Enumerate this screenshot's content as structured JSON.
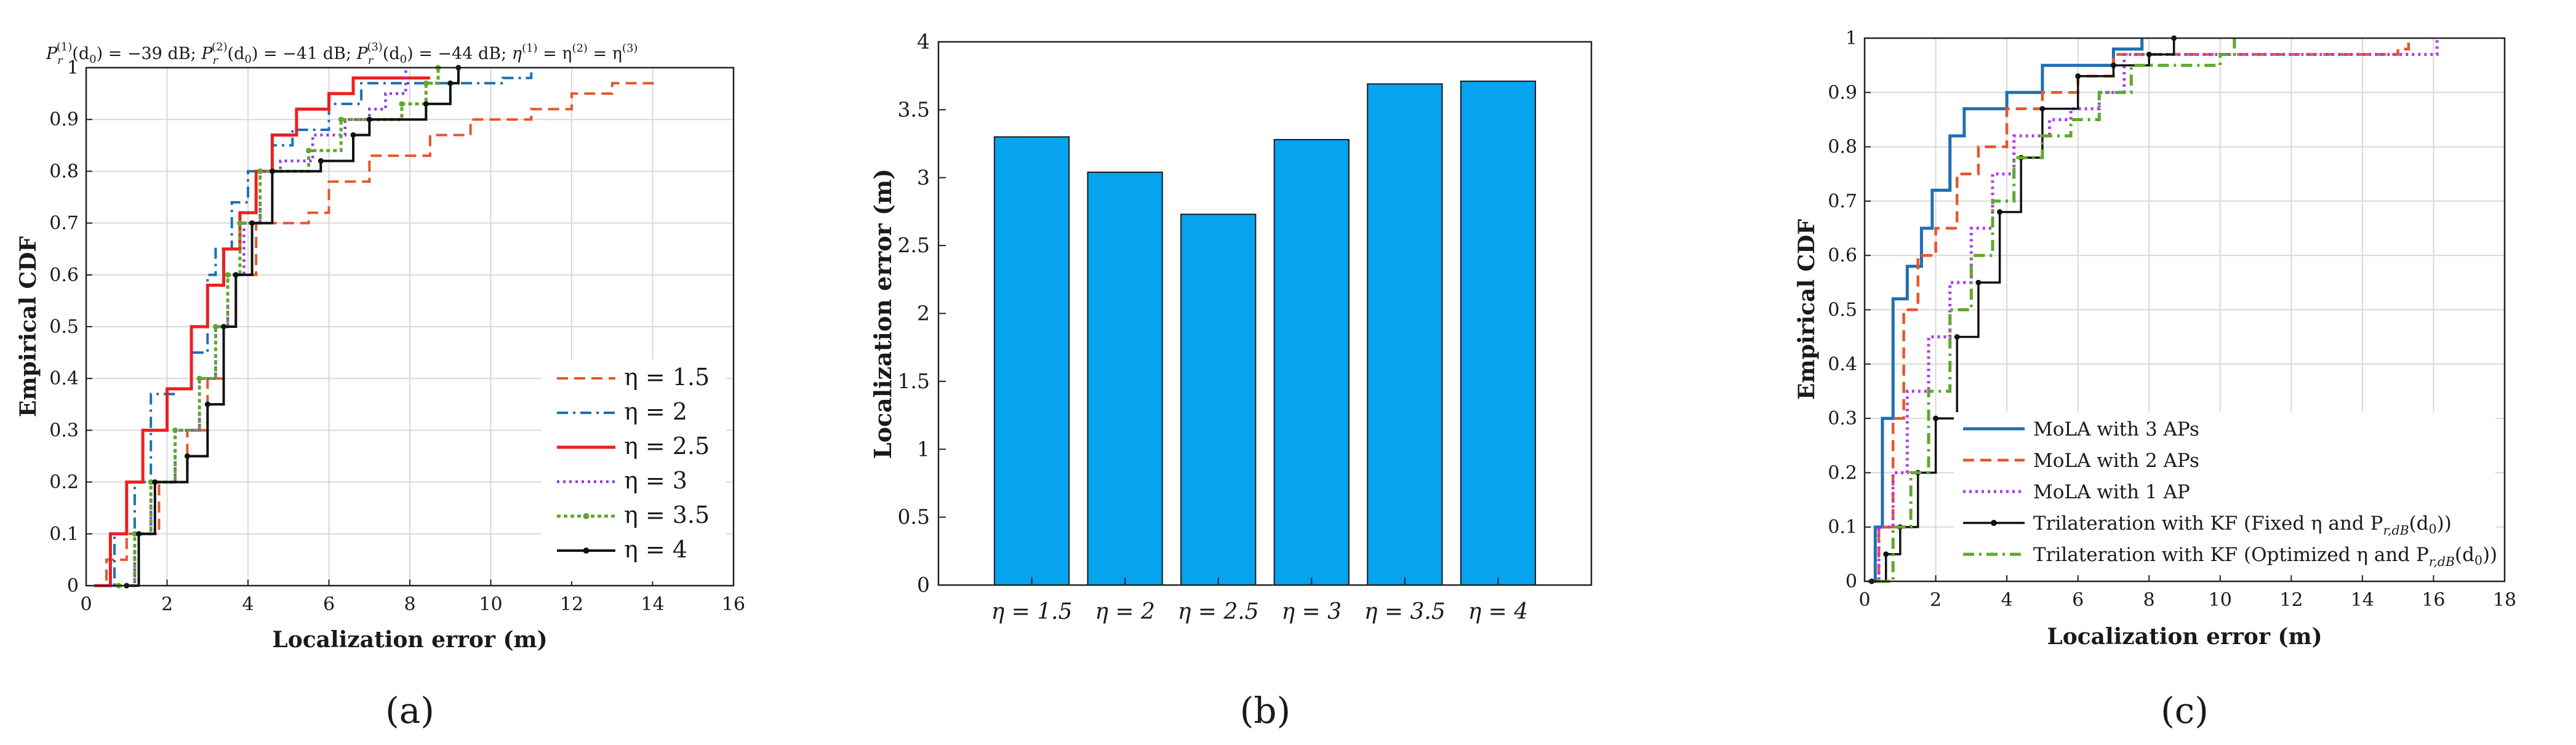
{
  "chart_data": [
    {
      "type": "line",
      "panel_label": "(a)",
      "title": "P_r^(1)(d_0) = −39 dB; P_r^(2)(d_0) = −41 dB; P_r^(3)(d_0) = −44 dB;  η^(1) = η^(2) = η^(3)",
      "title_parts": {
        "p1": "P",
        "p1_sub": "r",
        "p1_sup": "(1)",
        "p1_rest": "(d",
        "p1_d0": "0",
        "p1_val": ") = −39 dB; ",
        "p2": "P",
        "p2_sub": "r",
        "p2_sup": "(2)",
        "p2_rest": "(d",
        "p2_d0": "0",
        "p2_val": ") = −41 dB; ",
        "p3": "P",
        "p3_sub": "r",
        "p3_sup": "(3)",
        "p3_rest": "(d",
        "p3_d0": "0",
        "p3_val": ") = −44 dB;  ",
        "eta": "η",
        "eta_sup1": "(1)",
        "eq1": " = η",
        "eta_sup2": "(2)",
        "eq2": " = η",
        "eta_sup3": "(3)"
      },
      "xlabel": "Localization error (m)",
      "ylabel": "Empirical CDF",
      "xlim": [
        0,
        16
      ],
      "ylim": [
        0,
        1
      ],
      "xticks": [
        "0",
        "2",
        "4",
        "6",
        "8",
        "10",
        "12",
        "14",
        "16"
      ],
      "yticks": [
        "0",
        "0.1",
        "0.2",
        "0.3",
        "0.4",
        "0.5",
        "0.6",
        "0.7",
        "0.8",
        "0.9",
        "1"
      ],
      "grid": true,
      "legend_position": "lower-right",
      "series": [
        {
          "name": "η = 1.5",
          "color": "#e5572a",
          "dash": "18,10",
          "width": 4,
          "marker": false,
          "points": [
            [
              0.2,
              0
            ],
            [
              0.5,
              0.05
            ],
            [
              1.0,
              0.1
            ],
            [
              1.8,
              0.2
            ],
            [
              2.5,
              0.3
            ],
            [
              3.0,
              0.4
            ],
            [
              3.4,
              0.5
            ],
            [
              3.7,
              0.6
            ],
            [
              4.2,
              0.7
            ],
            [
              5.5,
              0.72
            ],
            [
              6.0,
              0.78
            ],
            [
              7.0,
              0.83
            ],
            [
              8.5,
              0.87
            ],
            [
              9.5,
              0.9
            ],
            [
              11.0,
              0.92
            ],
            [
              12.0,
              0.95
            ],
            [
              13.0,
              0.97
            ],
            [
              14.0,
              0.98
            ]
          ]
        },
        {
          "name": "η = 2",
          "color": "#1f6fb2",
          "dash": "18,8,4,8",
          "width": 4,
          "marker": false,
          "points": [
            [
              0.3,
              0
            ],
            [
              0.7,
              0.1
            ],
            [
              1.2,
              0.2
            ],
            [
              1.6,
              0.37
            ],
            [
              2.2,
              0.38
            ],
            [
              2.6,
              0.45
            ],
            [
              3.0,
              0.6
            ],
            [
              3.2,
              0.65
            ],
            [
              3.6,
              0.74
            ],
            [
              4.0,
              0.8
            ],
            [
              4.6,
              0.85
            ],
            [
              5.1,
              0.88
            ],
            [
              6.0,
              0.93
            ],
            [
              6.8,
              0.97
            ],
            [
              10.3,
              0.98
            ],
            [
              11.0,
              1.0
            ]
          ]
        },
        {
          "name": "η = 2.5",
          "color": "#ee1f1f",
          "dash": "",
          "width": 5,
          "marker": false,
          "points": [
            [
              0.2,
              0
            ],
            [
              0.6,
              0.1
            ],
            [
              1.0,
              0.2
            ],
            [
              1.4,
              0.3
            ],
            [
              2.0,
              0.38
            ],
            [
              2.6,
              0.5
            ],
            [
              3.0,
              0.58
            ],
            [
              3.4,
              0.65
            ],
            [
              3.8,
              0.72
            ],
            [
              4.2,
              0.8
            ],
            [
              4.6,
              0.87
            ],
            [
              5.2,
              0.92
            ],
            [
              6.0,
              0.95
            ],
            [
              6.6,
              0.98
            ],
            [
              8.5,
              0.98
            ]
          ]
        },
        {
          "name": "η = 3",
          "color": "#8b3fd6",
          "dash": "4,6",
          "width": 4.5,
          "marker": false,
          "points": [
            [
              0.5,
              0
            ],
            [
              1.2,
              0.1
            ],
            [
              1.6,
              0.2
            ],
            [
              2.2,
              0.3
            ],
            [
              2.8,
              0.4
            ],
            [
              3.2,
              0.5
            ],
            [
              3.5,
              0.6
            ],
            [
              3.9,
              0.7
            ],
            [
              4.3,
              0.8
            ],
            [
              4.8,
              0.82
            ],
            [
              5.6,
              0.87
            ],
            [
              6.4,
              0.9
            ],
            [
              7.0,
              0.92
            ],
            [
              7.4,
              0.95
            ],
            [
              7.9,
              1.0
            ]
          ]
        },
        {
          "name": "η = 3.5",
          "color": "#5fa82c",
          "dash": "6,5",
          "width": 5,
          "marker": true,
          "points": [
            [
              0.8,
              0
            ],
            [
              1.2,
              0.1
            ],
            [
              1.6,
              0.2
            ],
            [
              2.2,
              0.3
            ],
            [
              2.8,
              0.4
            ],
            [
              3.2,
              0.5
            ],
            [
              3.5,
              0.6
            ],
            [
              3.8,
              0.7
            ],
            [
              4.3,
              0.8
            ],
            [
              5.5,
              0.84
            ],
            [
              6.3,
              0.9
            ],
            [
              7.8,
              0.93
            ],
            [
              8.4,
              0.97
            ],
            [
              8.7,
              1.0
            ]
          ]
        },
        {
          "name": "η = 4",
          "color": "#111111",
          "dash": "",
          "width": 4,
          "marker": true,
          "points": [
            [
              1.0,
              0
            ],
            [
              1.3,
              0.1
            ],
            [
              1.7,
              0.2
            ],
            [
              2.5,
              0.25
            ],
            [
              3.0,
              0.35
            ],
            [
              3.4,
              0.5
            ],
            [
              3.7,
              0.6
            ],
            [
              4.1,
              0.7
            ],
            [
              4.6,
              0.8
            ],
            [
              5.8,
              0.82
            ],
            [
              6.6,
              0.87
            ],
            [
              7.0,
              0.9
            ],
            [
              8.4,
              0.93
            ],
            [
              9.0,
              0.97
            ],
            [
              9.2,
              1.0
            ]
          ]
        }
      ]
    },
    {
      "type": "bar",
      "panel_label": "(b)",
      "xlabel": "",
      "ylabel": "Localization error (m)",
      "ylim": [
        0,
        4
      ],
      "yticks": [
        "0",
        "0.5",
        "1",
        "1.5",
        "2",
        "2.5",
        "3",
        "3.5",
        "4"
      ],
      "grid": false,
      "bar_color": "#06a3ee",
      "categories": [
        "η = 1.5",
        "η = 2",
        "η = 2.5",
        "η = 3",
        "η = 3.5",
        "η = 4"
      ],
      "values": [
        3.3,
        3.04,
        2.73,
        3.28,
        3.69,
        3.71
      ]
    },
    {
      "type": "line",
      "panel_label": "(c)",
      "xlabel": "Localization error (m)",
      "ylabel": "Empirical CDF",
      "xlim": [
        0,
        18
      ],
      "ylim": [
        0,
        1
      ],
      "xticks": [
        "0",
        "2",
        "4",
        "6",
        "8",
        "10",
        "12",
        "14",
        "16",
        "18"
      ],
      "yticks": [
        "0",
        "0.1",
        "0.2",
        "0.3",
        "0.4",
        "0.5",
        "0.6",
        "0.7",
        "0.8",
        "0.9",
        "1"
      ],
      "grid": true,
      "legend_position": "lower-right",
      "series": [
        {
          "name": "MoLA with 3 APs",
          "label_main": "MoLA with 3 APs",
          "color": "#1f6fb2",
          "dash": "",
          "width": 5,
          "marker": false,
          "points": [
            [
              0.1,
              0
            ],
            [
              0.3,
              0.1
            ],
            [
              0.5,
              0.3
            ],
            [
              0.8,
              0.52
            ],
            [
              1.2,
              0.58
            ],
            [
              1.6,
              0.65
            ],
            [
              1.9,
              0.72
            ],
            [
              2.4,
              0.82
            ],
            [
              2.8,
              0.87
            ],
            [
              4.0,
              0.9
            ],
            [
              5.0,
              0.95
            ],
            [
              7.0,
              0.98
            ],
            [
              7.8,
              1.0
            ]
          ]
        },
        {
          "name": "MoLA with 2 APs",
          "label_main": "MoLA with 2 APs",
          "color": "#e5572a",
          "dash": "18,10",
          "width": 4.5,
          "marker": false,
          "points": [
            [
              0.1,
              0
            ],
            [
              0.4,
              0.1
            ],
            [
              0.8,
              0.3
            ],
            [
              1.1,
              0.5
            ],
            [
              1.5,
              0.6
            ],
            [
              2.0,
              0.65
            ],
            [
              2.6,
              0.75
            ],
            [
              3.2,
              0.8
            ],
            [
              4.0,
              0.87
            ],
            [
              5.0,
              0.9
            ],
            [
              6.0,
              0.93
            ],
            [
              7.0,
              0.97
            ],
            [
              15.0,
              0.98
            ],
            [
              15.3,
              1.0
            ]
          ]
        },
        {
          "name": "MoLA with 1 AP",
          "label_main": "MoLA with 1 AP",
          "color": "#b13be8",
          "dash": "4,6",
          "width": 5,
          "marker": false,
          "points": [
            [
              0.1,
              0
            ],
            [
              0.4,
              0.1
            ],
            [
              0.8,
              0.2
            ],
            [
              1.2,
              0.35
            ],
            [
              1.8,
              0.45
            ],
            [
              2.4,
              0.55
            ],
            [
              3.0,
              0.65
            ],
            [
              3.6,
              0.75
            ],
            [
              4.2,
              0.82
            ],
            [
              5.2,
              0.85
            ],
            [
              5.8,
              0.87
            ],
            [
              6.6,
              0.9
            ],
            [
              7.3,
              0.97
            ],
            [
              16.0,
              0.97
            ],
            [
              16.1,
              1.0
            ]
          ]
        },
        {
          "name": "Trilateration with KF (Fixed η and P_r,dB(d_0))",
          "label_main": "Trilateration with KF (Fixed η and P",
          "label_sub": "r,dB",
          "label_end": "(d",
          "label_d0": "0",
          "label_close": "))",
          "color": "#111111",
          "dash": "",
          "width": 3.5,
          "marker": true,
          "points": [
            [
              0.2,
              0
            ],
            [
              0.6,
              0.05
            ],
            [
              1.0,
              0.1
            ],
            [
              1.5,
              0.2
            ],
            [
              2.0,
              0.3
            ],
            [
              2.6,
              0.45
            ],
            [
              3.2,
              0.55
            ],
            [
              3.8,
              0.68
            ],
            [
              4.4,
              0.78
            ],
            [
              5.0,
              0.87
            ],
            [
              6.0,
              0.93
            ],
            [
              7.0,
              0.95
            ],
            [
              8.0,
              0.97
            ],
            [
              8.7,
              1.0
            ]
          ]
        },
        {
          "name": "Trilateration with KF (Optimized η and P_r,dB(d_0))",
          "label_main": "Trilateration with KF (Optimized η and P",
          "label_sub": "r,dB",
          "label_end": "(d",
          "label_d0": "0",
          "label_close": "))",
          "color": "#5fa82c",
          "dash": "18,8,4,8",
          "width": 5,
          "marker": false,
          "points": [
            [
              0.4,
              0
            ],
            [
              0.8,
              0.1
            ],
            [
              1.3,
              0.2
            ],
            [
              1.8,
              0.35
            ],
            [
              2.4,
              0.5
            ],
            [
              3.0,
              0.6
            ],
            [
              3.6,
              0.7
            ],
            [
              4.2,
              0.78
            ],
            [
              5.0,
              0.82
            ],
            [
              5.8,
              0.85
            ],
            [
              6.6,
              0.9
            ],
            [
              7.5,
              0.95
            ],
            [
              10.0,
              0.97
            ],
            [
              10.4,
              1.0
            ]
          ]
        }
      ]
    }
  ]
}
